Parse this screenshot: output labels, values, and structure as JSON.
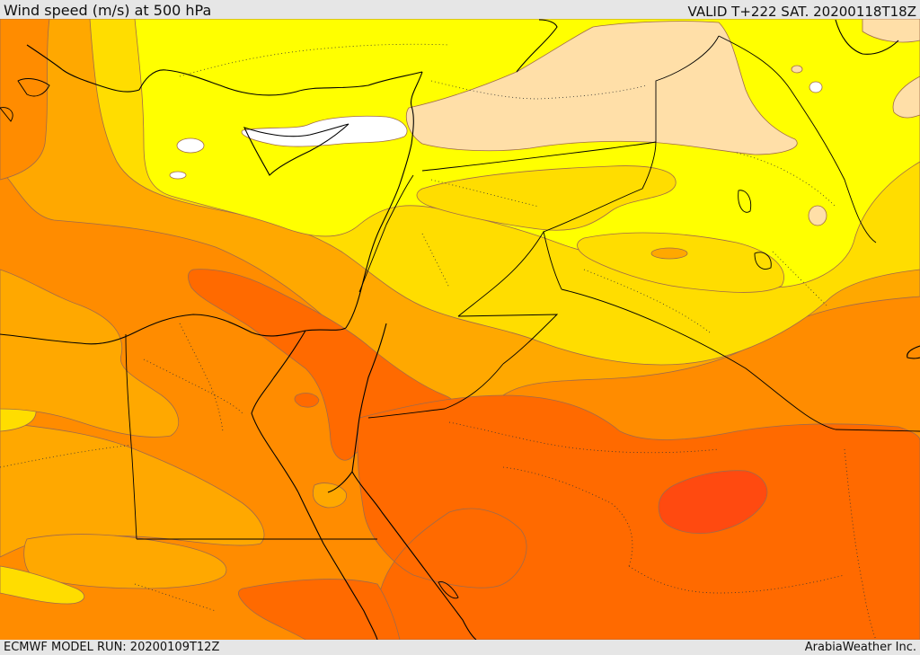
{
  "header": {
    "title": "Wind speed (m/s) at 500 hPa",
    "valid_time": "VALID T+222 SAT. 20200118T18Z"
  },
  "footer": {
    "model_run": "ECMWF MODEL RUN: 20200109T12Z",
    "credit": "ArabiaWeather Inc."
  },
  "map": {
    "variable": "wind speed",
    "level": "500 hPa",
    "units": "m/s",
    "colors": {
      "white": "#ffffff",
      "beige": "#ffdfa8",
      "yellow": "#ffff00",
      "gold": "#ffdd00",
      "light_orange": "#ffa800",
      "orange": "#ff8c00",
      "dark_orange": "#ff6a00",
      "red_orange": "#ff4a10"
    },
    "layers": [
      "wind-speed-fill",
      "speed-contours",
      "coastlines",
      "country-borders",
      "admin-borders"
    ]
  }
}
